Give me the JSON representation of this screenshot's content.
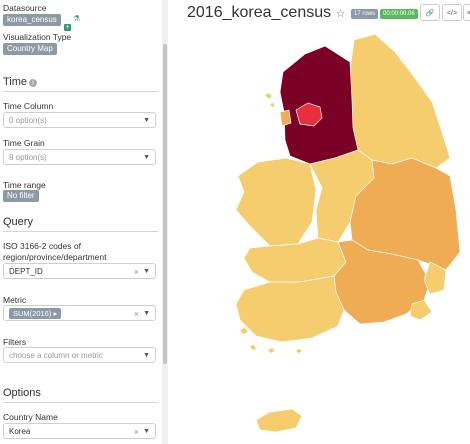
{
  "sidebar": {
    "datasource_label": "Datasource",
    "datasource_value": "korea_census",
    "viz_type_label": "Visualization Type",
    "viz_type_value": "Country Map",
    "time_section": "Time",
    "time_column_label": "Time Column",
    "time_column_placeholder": "0 option(s)",
    "time_grain_label": "Time Grain",
    "time_grain_placeholder": "8 option(s)",
    "time_range_label": "Time range",
    "time_range_value": "No filter",
    "query_section": "Query",
    "iso_label": "ISO 3166-2 codes of region/province/department",
    "iso_value": "DEPT_ID",
    "metric_label": "Metric",
    "metric_value": "SUM(2016)",
    "filters_label": "Filters",
    "filters_placeholder": "choose a column or metric",
    "options_section": "Options",
    "country_name_label": "Country Name",
    "country_name_value": "Korea"
  },
  "header": {
    "title": "2016_korea_census",
    "row_count": "17 rows",
    "query_time": "00:00:00.06"
  },
  "colors": {
    "accent_green": "#5cb85c",
    "badge_gray": "#8c99a6",
    "map_light": "#f6cd6e",
    "map_medium": "#f0ac55",
    "map_dark": "#7a0026",
    "map_red": "#e8303d"
  }
}
